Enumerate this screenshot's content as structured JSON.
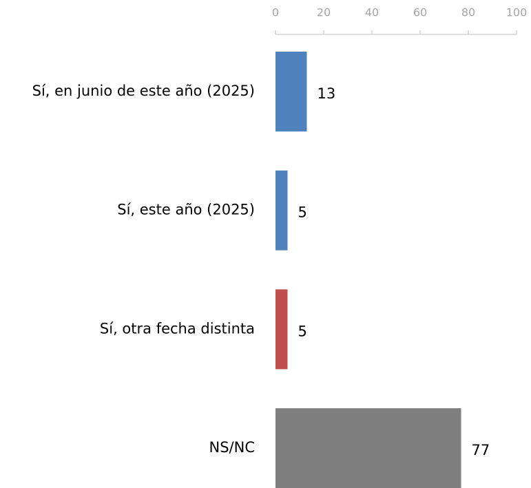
{
  "chart_data": {
    "type": "bar",
    "orientation": "horizontal",
    "categories": [
      "Sí, en junio de este año (2025)",
      "Sí, este año (2025)",
      "Sí, otra fecha distinta",
      "NS/NC"
    ],
    "values": [
      13,
      5,
      5,
      77
    ],
    "colors": [
      "#4f81bd",
      "#4f81bd",
      "#c0504d",
      "#7f7f7f"
    ],
    "xlim": [
      0,
      100
    ],
    "xticks": [
      0,
      20,
      40,
      60,
      80,
      100
    ],
    "axis_position": "top",
    "grid": false
  }
}
